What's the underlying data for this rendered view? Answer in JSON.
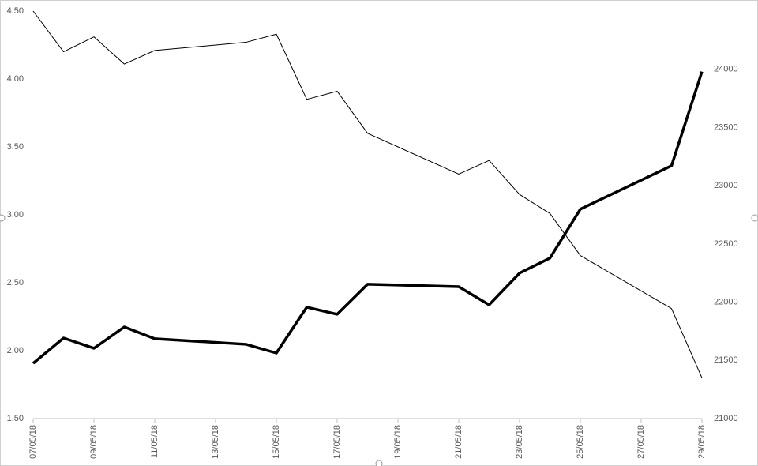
{
  "chart_data": {
    "type": "line",
    "x": [
      "07/05/18",
      "08/05/18",
      "09/05/18",
      "10/05/18",
      "11/05/18",
      "14/05/18",
      "15/05/18",
      "16/05/18",
      "17/05/18",
      "18/05/18",
      "21/05/18",
      "22/05/18",
      "23/05/18",
      "24/05/18",
      "25/05/18",
      "28/05/18",
      "29/05/18"
    ],
    "xlim": [
      "07/05/18",
      "29/05/18"
    ],
    "xticks": [
      "07/05/18",
      "09/05/18",
      "11/05/18",
      "13/05/18",
      "15/05/18",
      "17/05/18",
      "19/05/18",
      "21/05/18",
      "23/05/18",
      "25/05/18",
      "27/05/18",
      "29/05/18"
    ],
    "ylim": [
      1.5,
      4.5
    ],
    "yticks": [
      {
        "value": 1.5,
        "label": "1.50"
      },
      {
        "value": 2,
        "label": "2.00"
      },
      {
        "value": 2.5,
        "label": "2.50"
      },
      {
        "value": 3,
        "label": "3.00"
      },
      {
        "value": 3.5,
        "label": "3.50"
      },
      {
        "value": 4,
        "label": "4.00"
      },
      {
        "value": 4.5,
        "label": "4.50"
      }
    ],
    "y2lim": [
      21000,
      24500
    ],
    "y2ticks": [
      21000,
      21500,
      22000,
      22500,
      23000,
      23500,
      24000
    ],
    "grid": false,
    "series": [
      {
        "color": "#000000",
        "line_width": 1,
        "values": [
          4.5,
          4.2,
          4.31,
          4.11,
          4.21,
          4.27,
          4.33,
          3.85,
          3.91,
          3.6,
          3.3,
          3.4,
          3.15,
          3.01,
          2.7,
          2.31,
          1.8
        ]
      },
      {
        "color": "#000000",
        "line_width": 3.5,
        "axis": "y2",
        "values": [
          21475,
          21692,
          21604,
          21787,
          21686,
          21638,
          21563,
          21957,
          21896,
          22154,
          22133,
          21977,
          22249,
          22378,
          22799,
          23172,
          23980
        ]
      }
    ]
  }
}
